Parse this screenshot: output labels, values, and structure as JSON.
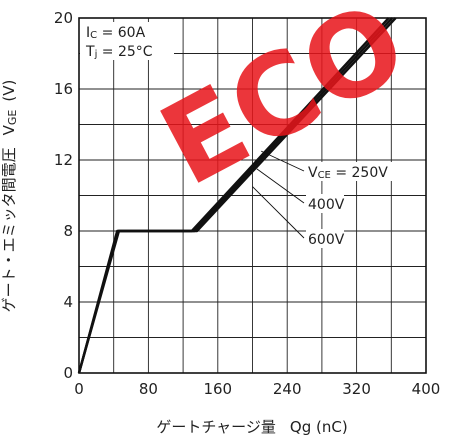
{
  "chart_data": {
    "type": "line",
    "title": "",
    "xlabel": "ゲートチャージ量",
    "xlabel_symbol": "Qg (nC)",
    "ylabel": "ゲート・エミッタ間電圧",
    "ylabel_symbol": "V",
    "ylabel_symbol_sub": "GE",
    "ylabel_unit": "(V)",
    "xlim": [
      0,
      400
    ],
    "ylim": [
      0,
      20
    ],
    "x_ticks": [
      0,
      80,
      160,
      240,
      320,
      400
    ],
    "y_ticks": [
      0,
      4,
      8,
      12,
      16,
      20
    ],
    "x_minor_step": 40,
    "y_minor_step": 2,
    "grid": true,
    "conditions": [
      {
        "main": "I",
        "sub": "C",
        "rest": " = 60A"
      },
      {
        "main": "T",
        "sub": "j",
        "rest": " = 25°C"
      }
    ],
    "series": [
      {
        "name": "VCE = 250V",
        "label_main": "V",
        "label_sub": "CE",
        "label_rest": " = 250V",
        "x": [
          0,
          44,
          130,
          357
        ],
        "y": [
          0,
          8,
          8,
          20
        ],
        "label_point": [
          210,
          12.5
        ]
      },
      {
        "name": "400V",
        "label_main": "",
        "label_sub": "",
        "label_rest": "400V",
        "x": [
          0,
          45,
          133,
          361
        ],
        "y": [
          0,
          8,
          8,
          20
        ],
        "label_point": [
          205,
          11.5
        ]
      },
      {
        "name": "600V",
        "label_main": "",
        "label_sub": "",
        "label_rest": "600V",
        "x": [
          0,
          46,
          136,
          365
        ],
        "y": [
          0,
          8,
          8,
          20
        ],
        "label_point": [
          200,
          10.5
        ]
      }
    ],
    "line_color": "#111111",
    "grid_color": "#222222"
  },
  "watermark": {
    "text": "ECO",
    "color": "#e8161b"
  }
}
